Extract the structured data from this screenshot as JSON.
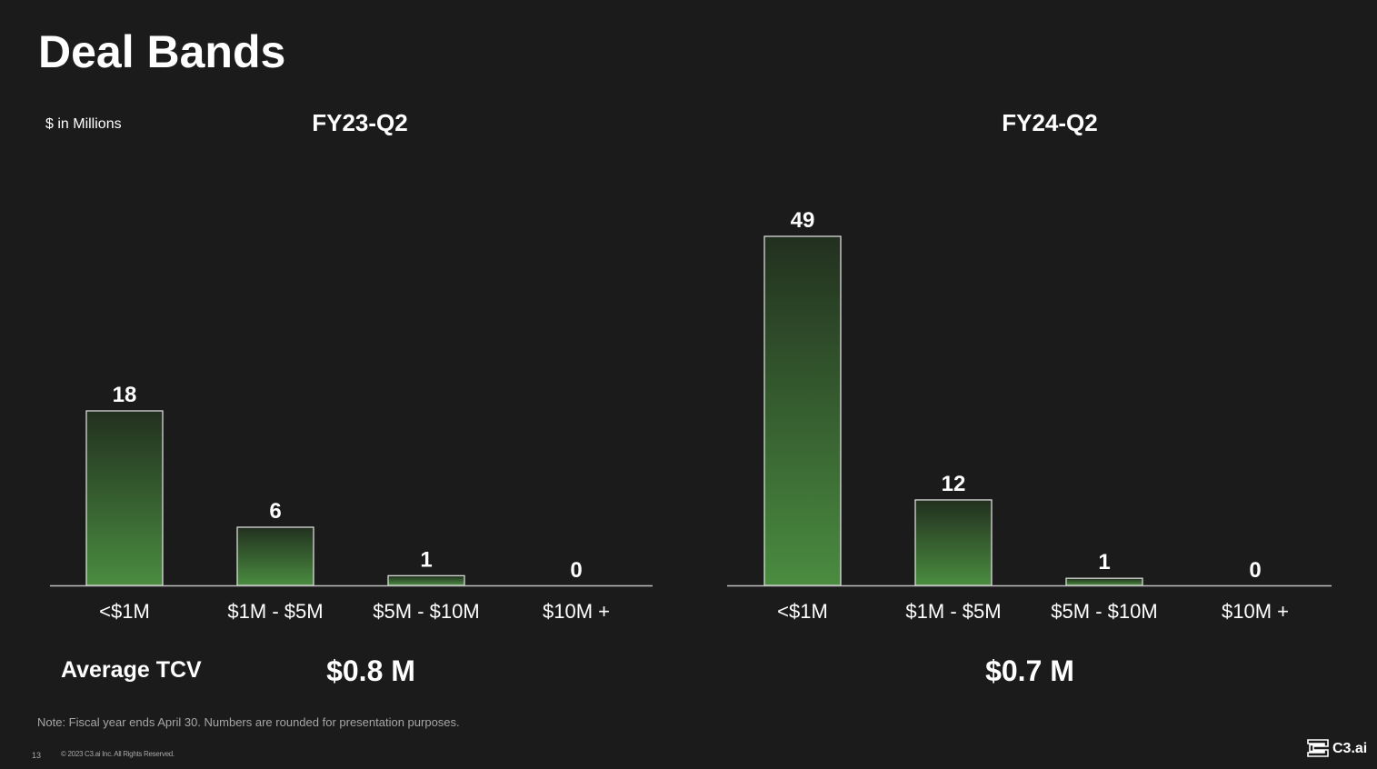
{
  "slide": {
    "title": "Deal Bands",
    "units_label": "$ in Millions",
    "average_label": "Average TCV",
    "note": "Note:  Fiscal year ends April 30. Numbers are rounded for presentation purposes.",
    "page_number": "13",
    "copyright": "© 2023 C3.ai Inc. All Rights Reserved.",
    "logo_text": "C3.ai"
  },
  "colors": {
    "background": "#1b1b1b",
    "bar_top": "#22301f",
    "bar_bottom": "#4a8c40",
    "bar_outline": "#e8e8e8",
    "axis": "#bfbfbf"
  },
  "chart_data": [
    {
      "type": "bar",
      "title": "FY23-Q2",
      "categories": [
        "<$1M",
        "$1M - $5M",
        "$5M - $10M",
        "$10M +"
      ],
      "values": [
        18,
        6,
        1,
        0
      ],
      "data_labels": [
        "18",
        "6",
        "1",
        "0"
      ],
      "ylim": [
        0,
        36
      ],
      "average_tcv": "$0.8 M",
      "grid": false
    },
    {
      "type": "bar",
      "title": "FY24-Q2",
      "categories": [
        "<$1M",
        "$1M - $5M",
        "$5M - $10M",
        "$10M +"
      ],
      "values": [
        49,
        12,
        1,
        0
      ],
      "data_labels": [
        "49",
        "12",
        "1",
        "0"
      ],
      "ylim": [
        0,
        49
      ],
      "average_tcv": "$0.7 M",
      "grid": false
    }
  ]
}
